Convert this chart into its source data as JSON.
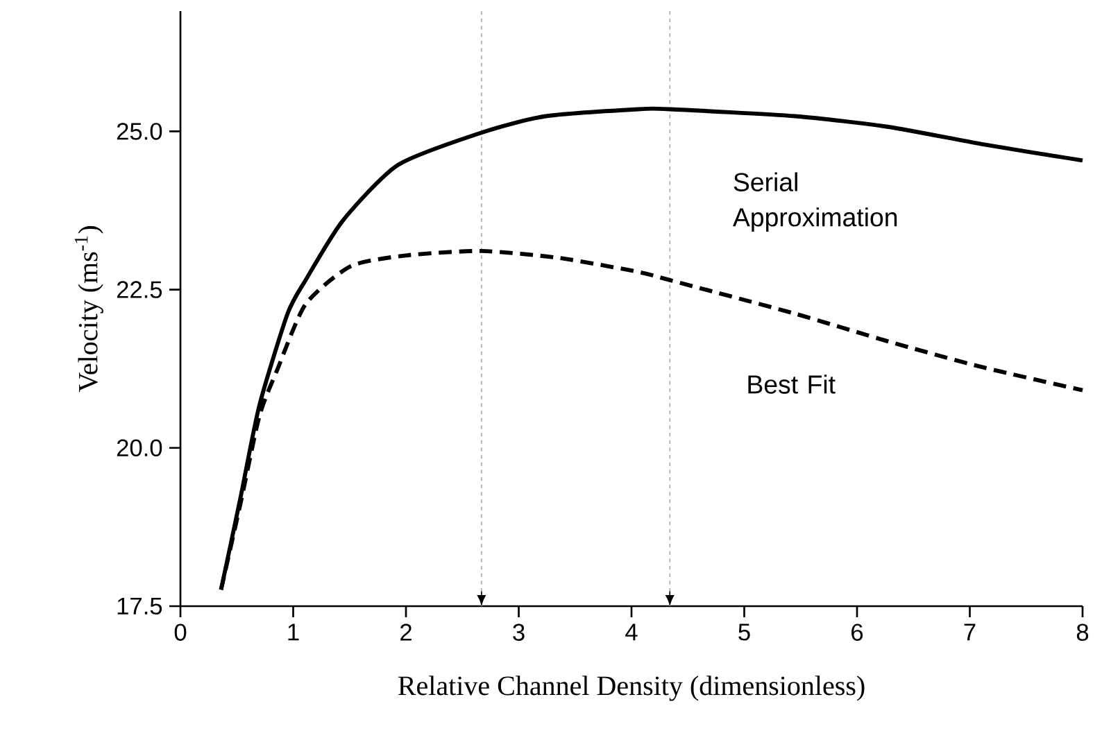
{
  "chart_data": {
    "type": "line",
    "xlabel": "Relative Channel Density (dimensionless)",
    "ylabel": "Velocity (ms$^{-1}$)",
    "xlim": [
      0,
      8
    ],
    "xticks": [
      0,
      1,
      2,
      3,
      4,
      5,
      6,
      7,
      8
    ],
    "ylim": [
      17.5,
      26.9
    ],
    "yticks": [
      {
        "value": 17.5,
        "label": "17.5"
      },
      {
        "value": 20,
        "label": "20.0"
      },
      {
        "value": 22.5,
        "label": "22.5"
      },
      {
        "value": 25,
        "label": "25.0"
      }
    ],
    "grid": false,
    "legend": false,
    "series": [
      {
        "name": "Serial Approximation",
        "color": "#000000",
        "line_style": "solid",
        "x": [
          0.36,
          0.53,
          0.7,
          0.95,
          1.11,
          1.44,
          1.93,
          2.67,
          3.24,
          4.06,
          4.34,
          5.45,
          6.28,
          7.1,
          8
        ],
        "values": [
          17.76,
          19.19,
          20.67,
          22.12,
          22.65,
          23.59,
          24.47,
          24.98,
          25.24,
          25.35,
          25.35,
          25.24,
          25.07,
          24.8,
          24.54
        ]
      },
      {
        "name": "Best Fit",
        "color": "#000000",
        "line_style": "dashed",
        "x": [
          0.36,
          0.53,
          0.7,
          0.86,
          1.11,
          1.51,
          2.0,
          2.67,
          3.36,
          4.06,
          4.34,
          5.45,
          6.28,
          7.1,
          8
        ],
        "values": [
          17.76,
          19.1,
          20.5,
          21.24,
          22.27,
          22.87,
          23.04,
          23.11,
          23.0,
          22.78,
          22.65,
          22.12,
          21.68,
          21.28,
          20.91
        ]
      }
    ],
    "ref_lines": [
      {
        "axis": "x",
        "value": 2.67,
        "color": "#aaaaaa",
        "line_style": "dotted"
      },
      {
        "axis": "x",
        "value": 4.34,
        "color": "#aaaaaa",
        "line_style": "dotted"
      }
    ]
  }
}
